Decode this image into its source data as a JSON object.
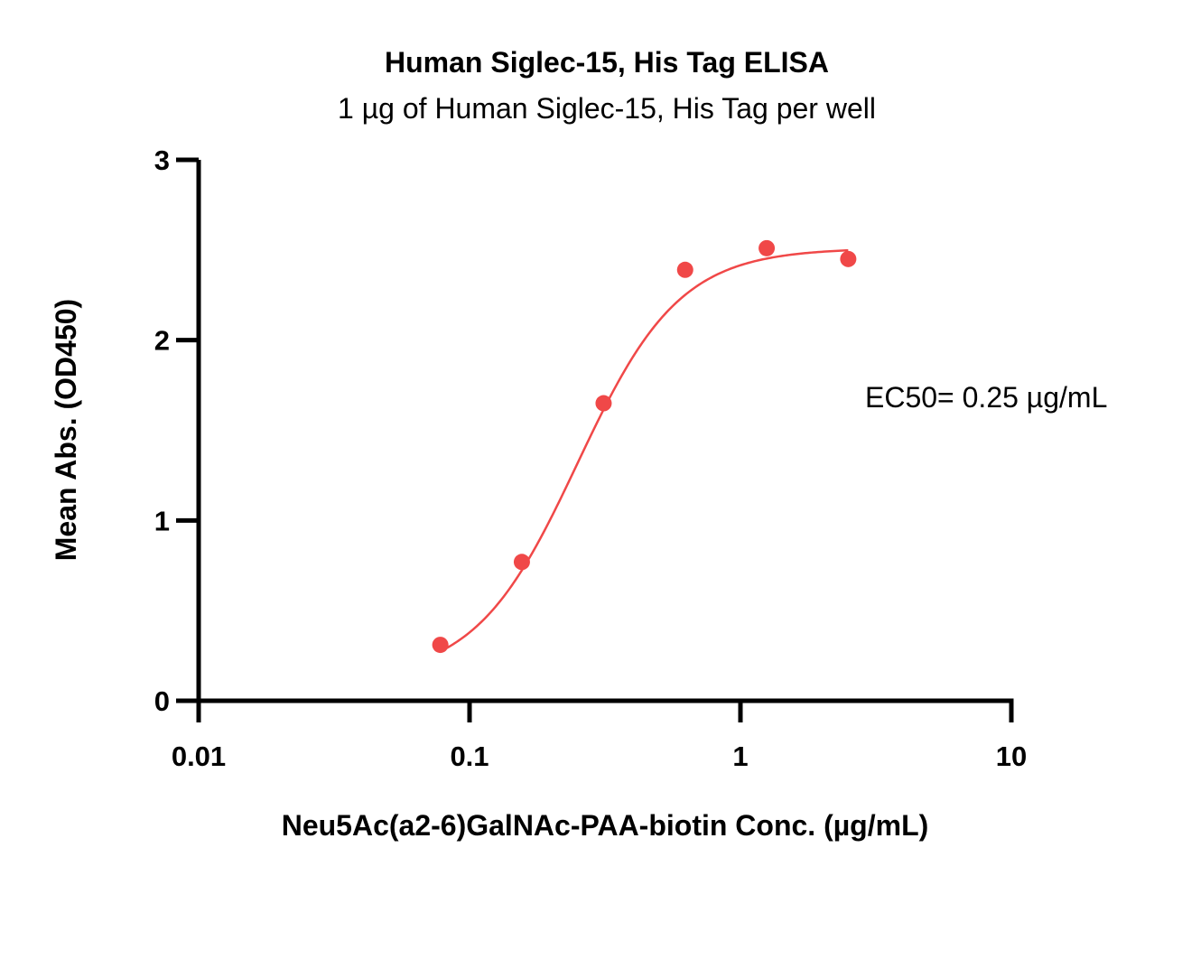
{
  "chart_data": {
    "type": "scatter",
    "title": "Human Siglec-15, His Tag ELISA",
    "subtitle": "1 µg of Human Siglec-15, His Tag per well",
    "xlabel": "Neu5Ac(a2-6)GalNAc-PAA-biotin Conc. (µg/mL)",
    "ylabel": "Mean Abs. (OD450)",
    "x_scale": "log",
    "xlim": [
      0.01,
      10
    ],
    "ylim": [
      0,
      3
    ],
    "x_ticks": [
      0.01,
      0.1,
      1,
      10
    ],
    "x_tick_labels": [
      "0.01",
      "0.1",
      "1",
      "10"
    ],
    "y_ticks": [
      0,
      1,
      2,
      3
    ],
    "y_tick_labels": [
      "0",
      "1",
      "2",
      "3"
    ],
    "grid": false,
    "series": [
      {
        "color": "#f04848",
        "x": [
          0.078,
          0.156,
          0.3125,
          0.625,
          1.25,
          2.5
        ],
        "y": [
          0.31,
          0.77,
          1.65,
          2.39,
          2.51,
          2.45
        ]
      }
    ],
    "fit_curve": {
      "type": "4PL",
      "color": "#f04848",
      "bottom": 0.12,
      "top": 2.51,
      "ec50": 0.25,
      "hill": 2.3,
      "x_range": [
        0.078,
        2.5
      ]
    },
    "annotations": [
      {
        "text": "EC50= 0.25 µg/mL"
      }
    ]
  }
}
